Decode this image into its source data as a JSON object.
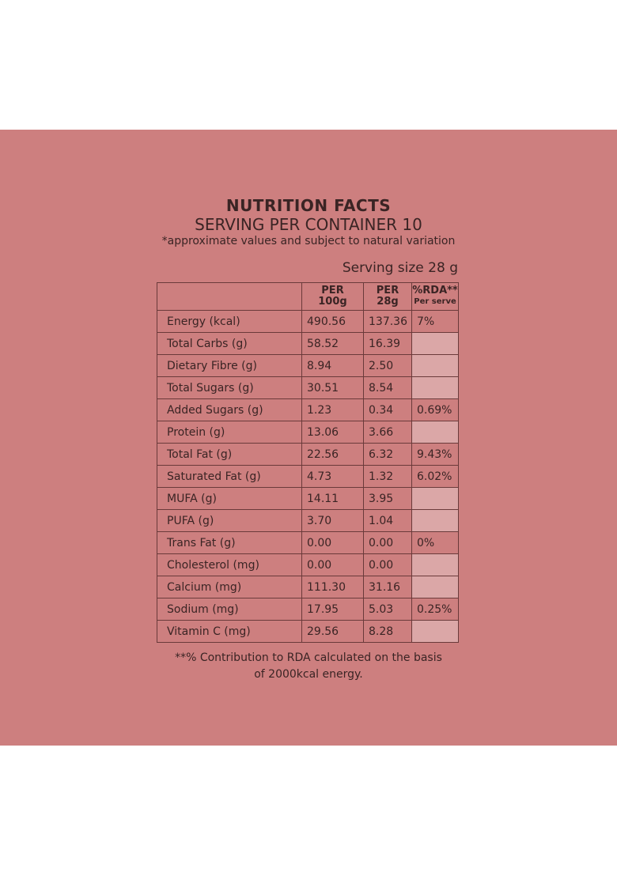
{
  "title": "NUTRITION FACTS",
  "subtitle": "SERVING PER CONTAINER 10",
  "note": "*approximate values and subject to natural variation",
  "serving_size": "Serving size 28 g",
  "table": {
    "header": [
      null,
      [
        "PER",
        "100g"
      ],
      [
        "PER",
        "28g"
      ],
      [
        "%RDA**",
        "Per serve"
      ]
    ],
    "rows": [
      [
        "Energy (kcal)",
        "490.56",
        "137.36",
        "7%"
      ],
      [
        "Total Carbs (g)",
        "58.52",
        "16.39",
        null
      ],
      [
        "Dietary Fibre (g)",
        "8.94",
        "2.50",
        null
      ],
      [
        "Total Sugars (g)",
        "30.51",
        "8.54",
        null
      ],
      [
        "Added Sugars (g)",
        "1.23",
        "0.34",
        "0.69%"
      ],
      [
        "Protein (g)",
        "13.06",
        "3.66",
        null
      ],
      [
        "Total Fat (g)",
        "22.56",
        "6.32",
        "9.43%"
      ],
      [
        "Saturated Fat (g)",
        "4.73",
        "1.32",
        "6.02%"
      ],
      [
        "MUFA (g)",
        "14.11",
        "3.95",
        null
      ],
      [
        "PUFA (g)",
        "3.70",
        "1.04",
        null
      ],
      [
        "Trans Fat (g)",
        "0.00",
        "0.00",
        "0%"
      ],
      [
        "Cholesterol (mg)",
        "0.00",
        "0.00",
        null
      ],
      [
        "Calcium (mg)",
        "111.30",
        "31.16",
        null
      ],
      [
        "Sodium (mg)",
        "17.95",
        "5.03",
        "0.25%"
      ],
      [
        "Vitamin C (mg)",
        "29.56",
        "8.28",
        null
      ]
    ]
  },
  "footnote": [
    "**% Contribution to RDA calculated on the basis",
    "of 2000kcal energy."
  ]
}
